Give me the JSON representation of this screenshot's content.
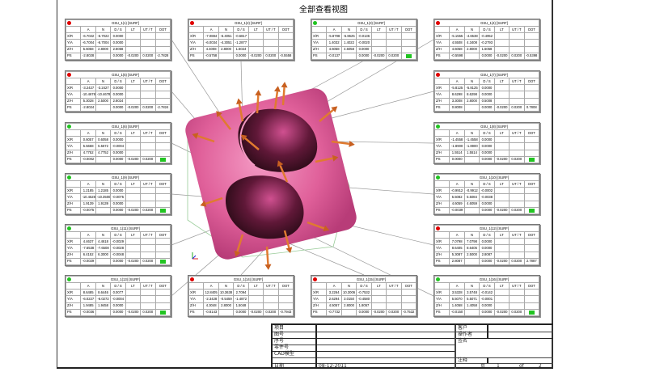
{
  "title": "全部查看视图",
  "colors": {
    "fail": "#e00000",
    "pass": "#22c422",
    "model": "#e0609a",
    "arrow": "#e07a30"
  },
  "columns": [
    "",
    "A",
    "N",
    "D / S",
    "LT",
    "UT / T",
    "OOT"
  ],
  "row_labels": [
    "X/R",
    "Y/A",
    "Z/H",
    "PS"
  ],
  "tables": [
    {
      "title": "GSU_1(1) [SURF]",
      "status": "fail",
      "rows": [
        [
          "-6.7022",
          "-6.7022",
          "0.0000"
        ],
        [
          "-6.7004",
          "-6.7004",
          "0.0000"
        ],
        [
          "5.6058",
          "2.8000",
          "2.8058"
        ]
      ],
      "ps": [
        "-2.8028",
        "",
        "0.0000",
        "-0.0200",
        "0.0200",
        "-2.7828"
      ]
    },
    {
      "title": "GSU_1(2) [SURF]",
      "status": "fail",
      "rows": [
        [
          "-7.0884",
          "-6.4051",
          "-0.6817"
        ],
        [
          "-6.0034",
          "-4.3051",
          "-1.2877"
        ],
        [
          "4.4008",
          "2.8000",
          "1.6024"
        ]
      ],
      "ps": [
        "-0.5758",
        "",
        "0.0000",
        "-0.0200",
        "0.0200",
        "-0.5558"
      ]
    },
    {
      "title": "GSU_1(3) [SURF]",
      "status": "pass",
      "rows": [
        [
          "-5.8798",
          "-5.8625",
          "-0.0136"
        ],
        [
          "1.4032",
          "1.4022",
          "-0.0020"
        ],
        [
          "4.6058",
          "4.6058",
          "0.0000"
        ]
      ],
      "ps": [
        "-0.0137",
        "",
        "0.0000",
        "-0.0200",
        "0.0200",
        ""
      ]
    },
    {
      "title": "GSU_1(4) [SURF]",
      "status": "fail",
      "rows": [
        [
          "-5.1555",
          "-4.6538",
          "-0.4952"
        ],
        [
          "4.5508",
          "4.3408",
          "-0.2793"
        ],
        [
          "4.6058",
          "2.8000",
          "1.6058"
        ]
      ],
      "ps": [
        "-0.5598",
        "",
        "0.0000",
        "-0.0200",
        "0.0200",
        "-0.5398"
      ]
    },
    {
      "title": "GSU_1(5) [SURF]",
      "status": "fail",
      "rows": [
        [
          "-3.2427",
          "-3.2427",
          "0.0000"
        ],
        [
          "-10.4678",
          "-10.4678",
          "0.0000"
        ],
        [
          "5.3028",
          "2.5000",
          "2.8024"
        ]
      ],
      "ps": [
        "-2.8024",
        "",
        "0.0000",
        "-0.0200",
        "0.0200",
        "-2.7824"
      ]
    },
    {
      "title": "GSU_1(7) [SURF]",
      "status": "fail",
      "rows": [
        [
          "-5.8125",
          "-5.8125",
          "0.0000"
        ],
        [
          "8.6298",
          "8.6298",
          "0.0000"
        ],
        [
          "3.3008",
          "2.8000",
          "0.5008"
        ]
      ],
      "ps": [
        "0.8008",
        "",
        "0.0000",
        "-0.0200",
        "0.0200",
        "0.7808"
      ]
    },
    {
      "title": "GSU_1(6) [SURF]",
      "status": "pass",
      "rows": [
        [
          "0.6057",
          "0.6058",
          "0.0000"
        ],
        [
          "5.5668",
          "5.5672",
          "-0.0004"
        ],
        [
          "4.7752",
          "4.7752",
          "0.0000"
        ]
      ],
      "ps": [
        "-0.0002",
        "",
        "0.0000",
        "-0.0200",
        "0.0200",
        ""
      ]
    },
    {
      "title": "GSU_1(8) [SURF]",
      "status": "pass",
      "rows": [
        [
          "-1.4558",
          "-1.4558",
          "0.0000"
        ],
        [
          "-1.8900",
          "-1.8900",
          "0.0000"
        ],
        [
          "1.5514",
          "1.5514",
          "0.0000"
        ]
      ],
      "ps": [
        "0.0000",
        "",
        "0.0000",
        "-0.0200",
        "0.0200",
        ""
      ]
    },
    {
      "title": "GSU_1(9) [SURF]",
      "status": "pass",
      "rows": [
        [
          "1.2185",
          "1.2185",
          "0.0000"
        ],
        [
          "-10.4528",
          "-10.3500",
          "-0.0075"
        ],
        [
          "1.9139",
          "1.9139",
          "0.0000"
        ]
      ],
      "ps": [
        "-0.0075",
        "",
        "0.0000",
        "-0.0200",
        "0.0200",
        ""
      ]
    },
    {
      "title": "GSU_1(10) [SURF]",
      "status": "pass",
      "rows": [
        [
          "-0.9912",
          "-0.9912",
          "-0.0002"
        ],
        [
          "5.5082",
          "5.5084",
          "-0.0038"
        ],
        [
          "4.6059",
          "4.6059",
          "0.0000"
        ]
      ],
      "ps": [
        "-0.0039",
        "",
        "0.0000",
        "-0.0200",
        "0.0200",
        ""
      ]
    },
    {
      "title": "GSU_1(11) [SURF]",
      "status": "pass",
      "rows": [
        [
          "4.4637",
          "4.4618",
          "-0.0029"
        ],
        [
          "-7.6538",
          "-7.6508",
          "-0.0028"
        ],
        [
          "6.4152",
          "6.3000",
          "-0.0048"
        ]
      ],
      "ps": [
        "-0.0029",
        "",
        "0.0000",
        "-0.0200",
        "0.0200",
        ""
      ]
    },
    {
      "title": "GSU_1(12) [SURF]",
      "status": "fail",
      "rows": [
        [
          "7.0798",
          "7.0798",
          "0.0000"
        ],
        [
          "8.6405",
          "8.6405",
          "0.0000"
        ],
        [
          "5.3087",
          "2.5000",
          "2.8087"
        ]
      ],
      "ps": [
        "2.8087",
        "",
        "0.0000",
        "-0.0200",
        "0.0200",
        "2.7887"
      ]
    },
    {
      "title": "GSU_1(13) [SURF]",
      "status": "pass",
      "rows": [
        [
          "8.6485",
          "8.6446",
          "0.0077"
        ],
        [
          "-6.0227",
          "-6.0272",
          "-0.0004"
        ],
        [
          "1.9485",
          "1.9458",
          "0.0000"
        ]
      ],
      "ps": [
        "-0.0036",
        "",
        "0.0000",
        "-0.0200",
        "0.0200",
        ""
      ]
    },
    {
      "title": "GSU_1(14) [SURF]",
      "status": "fail",
      "rows": [
        [
          "12.8405",
          "10.3638",
          "2.7094"
        ],
        [
          "-2.3428",
          "-0.5459",
          "-1.4872"
        ],
        [
          "4.3048",
          "2.8000",
          "1.5048"
        ]
      ],
      "ps": [
        "-0.8143",
        "",
        "0.0000",
        "-0.0200",
        "0.0200",
        "-0.7943"
      ]
    },
    {
      "title": "GSU_1(15) [SURF]",
      "status": "fail",
      "rows": [
        [
          "3.2264",
          "10.3006",
          "-0.7532"
        ],
        [
          "2.6294",
          "3.0150",
          "-0.4580"
        ],
        [
          "4.5057",
          "2.8000",
          "1.8057"
        ]
      ],
      "ps": [
        "-0.7732",
        "",
        "0.0000",
        "-0.0200",
        "0.0200",
        "-0.7532"
      ]
    },
    {
      "title": "GSU_1(16) [SURF]",
      "status": "pass",
      "rows": [
        [
          "3.5328",
          "3.5748",
          "-0.0142"
        ],
        [
          "5.5070",
          "5.5071",
          "-0.0001"
        ],
        [
          "1.4058",
          "1.4058",
          "0.0000"
        ]
      ],
      "ps": [
        "-0.0150",
        "",
        "0.0000",
        "-0.0200",
        "0.0200",
        ""
      ]
    }
  ],
  "title_block": {
    "project_label": "项目",
    "drawing_no_label": "图号",
    "serial_label": "序号",
    "part_no_label": "零件号",
    "cad_label": "CAD模型",
    "date_label": "日期",
    "date_value": "08-12-2011",
    "customer_label": "客户",
    "operator_label": "操作者",
    "signature_label": "签名",
    "notes_label": "注释",
    "page_label": "页",
    "page_current": "1",
    "page_of": "of",
    "page_total": "2"
  }
}
